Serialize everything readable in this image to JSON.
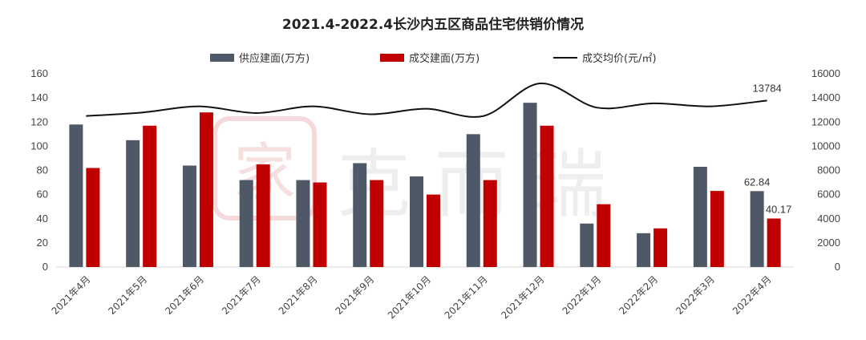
{
  "chart_data": {
    "type": "bar",
    "title": "2021.4-2022.4长沙内五区商品住宅供销价情况",
    "categories": [
      "2021年4月",
      "2021年5月",
      "2021年6月",
      "2021年7月",
      "2021年8月",
      "2021年9月",
      "2021年10月",
      "2021年11月",
      "2021年12月",
      "2022年1月",
      "2022年2月",
      "2022年3月",
      "2022年4月"
    ],
    "series": [
      {
        "name": "供应建面(万方)",
        "type": "bar",
        "axis": "left",
        "color": "#4e5866",
        "values": [
          118,
          105,
          84,
          72,
          72,
          86,
          75,
          110,
          136,
          36,
          28,
          83,
          62.84
        ]
      },
      {
        "name": "成交建面(万方)",
        "type": "bar",
        "axis": "left",
        "color": "#c00000",
        "values": [
          82,
          117,
          128,
          85,
          70,
          72,
          60,
          72,
          117,
          52,
          32,
          63,
          40.17
        ]
      },
      {
        "name": "成交均价(元/㎡)",
        "type": "line",
        "axis": "right",
        "color": "#111111",
        "values": [
          12500,
          12800,
          13300,
          12750,
          13300,
          12650,
          13100,
          12500,
          15200,
          13200,
          13550,
          13300,
          13784
        ]
      }
    ],
    "left_axis": {
      "min": 0,
      "max": 160,
      "step": 20,
      "ticks": [
        "0",
        "20",
        "40",
        "60",
        "80",
        "100",
        "120",
        "140",
        "160"
      ]
    },
    "right_axis": {
      "min": 0,
      "max": 16000,
      "step": 2000,
      "ticks": [
        "0",
        "2000",
        "4000",
        "6000",
        "8000",
        "10000",
        "12000",
        "14000",
        "16000"
      ]
    },
    "data_labels": [
      {
        "series": 0,
        "index": 12,
        "text": "62.84"
      },
      {
        "series": 1,
        "index": 12,
        "text": "40.17"
      },
      {
        "series": 2,
        "index": 12,
        "text": "13784"
      }
    ],
    "legend_position": "top",
    "grid": false
  },
  "watermark": {
    "mark": "家",
    "text": "克而瑞"
  }
}
